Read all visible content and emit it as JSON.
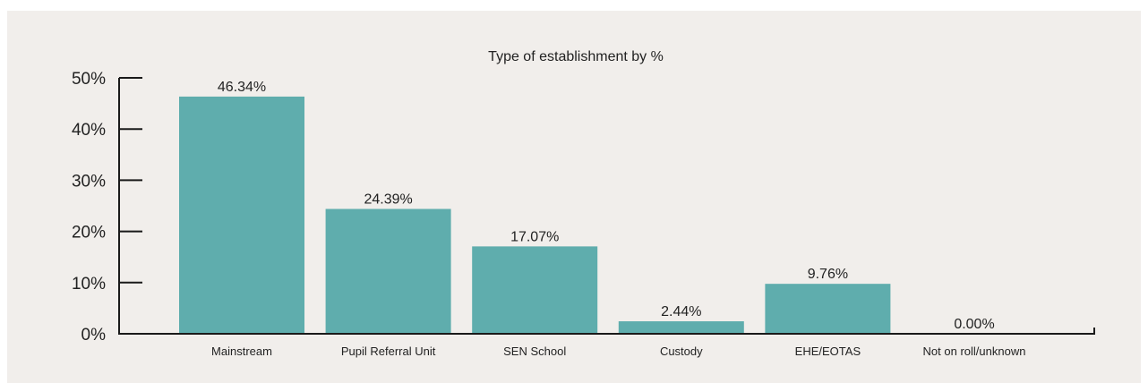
{
  "chart_data": {
    "type": "bar",
    "title": "Type of establishment by %",
    "xlabel": "",
    "ylabel": "",
    "categories": [
      "Mainstream",
      "Pupil Referral Unit",
      "SEN School",
      "Custody",
      "EHE/EOTAS",
      "Not on roll/unknown"
    ],
    "values": [
      46.34,
      24.39,
      17.07,
      2.44,
      9.76,
      0.0
    ],
    "data_labels": [
      "46.34%",
      "24.39%",
      "17.07%",
      "2.44%",
      "9.76%",
      "0.00%"
    ],
    "ylim": [
      0,
      50
    ],
    "yticks": [
      0,
      10,
      20,
      30,
      40,
      50
    ],
    "ytick_labels": [
      "0%",
      "10%",
      "20%",
      "30%",
      "40%",
      "50%"
    ],
    "grid": false,
    "legend": "none",
    "bar_color": "#5fadad",
    "background_color": "#f1eeeb"
  }
}
